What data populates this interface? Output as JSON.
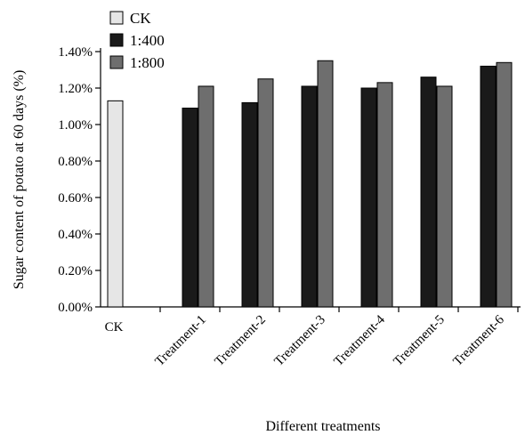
{
  "chart_data": {
    "type": "bar",
    "title": "",
    "xlabel": "Different treatments",
    "ylabel": "Sugar content of potato at 60 days (%)",
    "categories": [
      "CK",
      "Treatment-1",
      "Treatment-2",
      "Treatment-3",
      "Treatment-4",
      "Treatment-5",
      "Treatment-6"
    ],
    "ylim": [
      0,
      0.014
    ],
    "yticks": [
      "0.00%",
      "0.20%",
      "0.40%",
      "0.60%",
      "0.80%",
      "1.00%",
      "1.20%",
      "1.40%"
    ],
    "legend": "top-left",
    "grid": false,
    "series": [
      {
        "name": "CK",
        "color": "#e6e6e6",
        "values": [
          0.0113,
          null,
          null,
          null,
          null,
          null,
          null
        ]
      },
      {
        "name": "1:400",
        "color": "#1a1a1a",
        "values": [
          null,
          0.0109,
          0.0112,
          0.0121,
          0.012,
          0.0126,
          0.0132
        ]
      },
      {
        "name": "1:800",
        "color": "#6e6e6e",
        "values": [
          null,
          0.0121,
          0.0125,
          0.0135,
          0.0123,
          0.0121,
          0.0134
        ]
      }
    ]
  }
}
